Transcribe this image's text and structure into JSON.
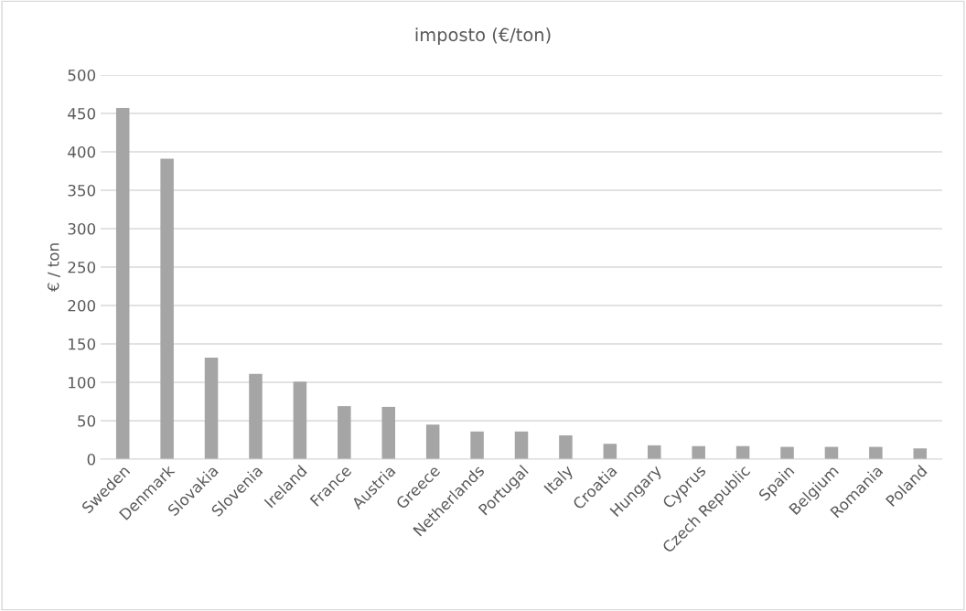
{
  "chart_data": {
    "type": "bar",
    "title": "imposto (€/ton)",
    "ylabel": "€ / ton",
    "categories": [
      "Sweden",
      "Denmark",
      "Slovakia",
      "Slovenia",
      "Ireland",
      "France",
      "Austria",
      "Greece",
      "Netherlands",
      "Portugal",
      "Italy",
      "Croatia",
      "Hungary",
      "Cyprus",
      "Czech Republic",
      "Spain",
      "Belgium",
      "Romania",
      "Poland"
    ],
    "values": [
      457,
      391,
      132,
      111,
      101,
      69,
      68,
      45,
      36,
      36,
      31,
      20,
      18,
      17,
      17,
      16,
      16,
      16,
      14
    ],
    "color": "#a5a5a5",
    "ylim": [
      0,
      500
    ],
    "yticks": [
      0,
      50,
      100,
      150,
      200,
      250,
      300,
      350,
      400,
      450,
      500
    ],
    "grid": "y",
    "legend": false
  }
}
